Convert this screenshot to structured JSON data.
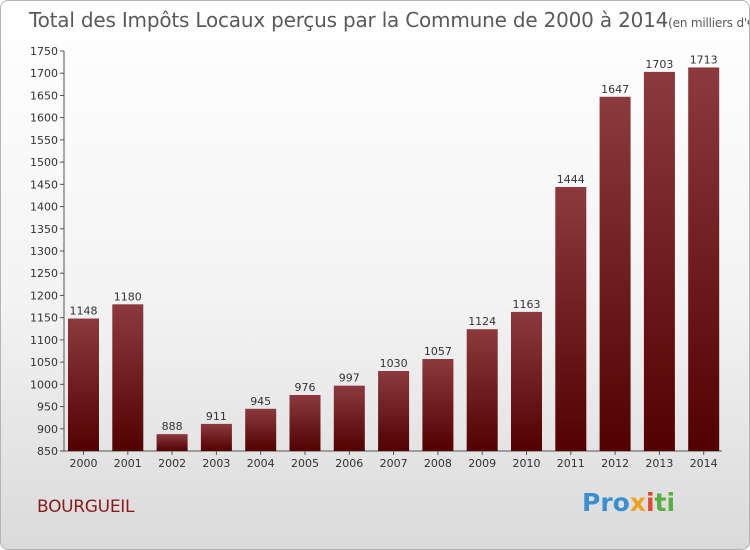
{
  "title": {
    "main": "Total des Impôts Locaux perçus par la Commune de 2000 à 2014",
    "unit": "(en milliers d'€)"
  },
  "commune": "BOURGUEIL",
  "logo": {
    "p1": "Pro",
    "p2": "x",
    "p3": "i",
    "p4": "ti"
  },
  "colors": {
    "bar_top": "#8c3a3e",
    "bar_bottom": "#520000",
    "text": "#333333",
    "commune": "#8c1a1a"
  },
  "chart_data": {
    "type": "bar",
    "categories": [
      "2000",
      "2001",
      "2002",
      "2003",
      "2004",
      "2005",
      "2006",
      "2007",
      "2008",
      "2009",
      "2010",
      "2011",
      "2012",
      "2013",
      "2014"
    ],
    "values": [
      1148,
      1180,
      888,
      911,
      945,
      976,
      997,
      1030,
      1057,
      1124,
      1163,
      1444,
      1647,
      1703,
      1713
    ],
    "ylim": [
      850,
      1750
    ],
    "yticks": [
      850,
      900,
      950,
      1000,
      1050,
      1100,
      1150,
      1200,
      1250,
      1300,
      1350,
      1400,
      1450,
      1500,
      1550,
      1600,
      1650,
      1700,
      1750
    ],
    "grid": false,
    "title": "Total des Impôts Locaux perçus par la Commune de 2000 à 2014",
    "xlabel": "",
    "ylabel": ""
  }
}
